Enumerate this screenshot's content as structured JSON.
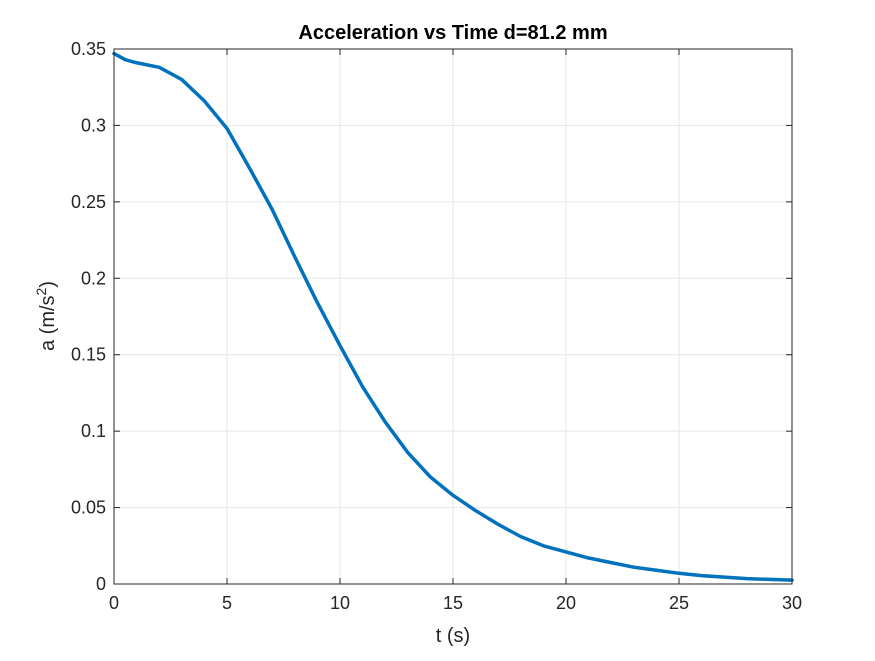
{
  "chart_data": {
    "type": "line",
    "title": "Acceleration vs Time d=81.2 mm",
    "xlabel": "t (s)",
    "ylabel_base": "a (m/s",
    "ylabel_sup": "2",
    "ylabel_close": ")",
    "xlim": [
      0,
      30
    ],
    "ylim": [
      0,
      0.35
    ],
    "xticks": [
      0,
      5,
      10,
      15,
      20,
      25,
      30
    ],
    "xtick_labels": [
      "0",
      "5",
      "10",
      "15",
      "20",
      "25",
      "30"
    ],
    "yticks": [
      0,
      0.05,
      0.1,
      0.15,
      0.2,
      0.25,
      0.3,
      0.35
    ],
    "ytick_labels": [
      "0",
      "0.05",
      "0.1",
      "0.15",
      "0.2",
      "0.25",
      "0.3",
      "0.35"
    ],
    "grid": true,
    "series": [
      {
        "color": "#0072bd",
        "x": [
          0,
          0.5,
          1,
          2,
          3,
          4,
          5,
          6,
          7,
          8,
          9,
          10,
          11,
          12,
          13,
          14,
          15,
          16,
          17,
          18,
          19,
          20,
          21,
          22,
          23,
          24,
          25,
          26,
          27,
          28,
          29,
          30
        ],
        "y": [
          0.347,
          0.343,
          0.341,
          0.338,
          0.33,
          0.316,
          0.298,
          0.272,
          0.245,
          0.214,
          0.184,
          0.156,
          0.129,
          0.106,
          0.086,
          0.07,
          0.058,
          0.048,
          0.039,
          0.031,
          0.025,
          0.021,
          0.017,
          0.014,
          0.011,
          0.009,
          0.007,
          0.0055,
          0.0045,
          0.0035,
          0.003,
          0.0025
        ]
      }
    ]
  }
}
